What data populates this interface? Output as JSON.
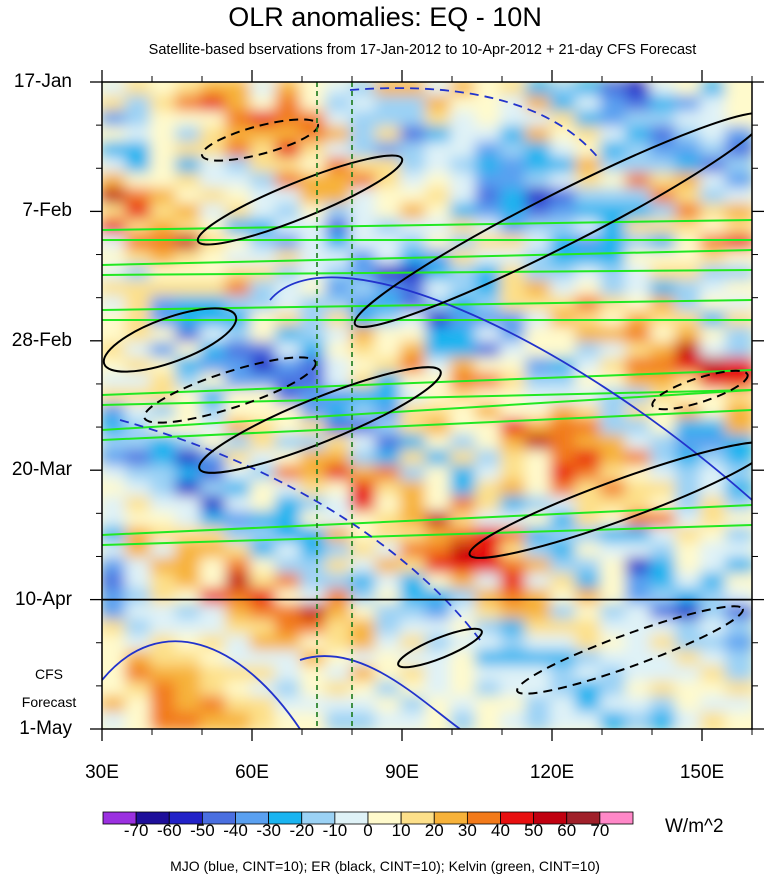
{
  "title": "OLR anomalies: EQ - 10N",
  "subtitle": "Satellite-based bservations from 17-Jan-2012 to 10-Apr-2012 + 21-day CFS Forecast",
  "side_label": {
    "line1": "CFS",
    "line2": "Forecast"
  },
  "footer": "MJO (blue, CINT=10); ER (black, CINT=10); Kelvin (green, CINT=10)",
  "colorbar": {
    "units": "W/m^2",
    "labels": [
      "-70",
      "-60",
      "-50",
      "-40",
      "-30",
      "-20",
      "-10",
      "0",
      "10",
      "20",
      "30",
      "40",
      "50",
      "60",
      "70"
    ],
    "colors": [
      "#9b30e0",
      "#1e0f9a",
      "#2222c8",
      "#4a6fe0",
      "#5aa0f0",
      "#1ab4f0",
      "#9bd2f5",
      "#dff2f7",
      "#fffacc",
      "#fde08a",
      "#f7b23a",
      "#f27a1a",
      "#e81010",
      "#c00010",
      "#a0202a",
      "#ff88c8"
    ]
  },
  "chart_data": {
    "type": "heatmap",
    "title": "OLR anomalies: EQ - 10N",
    "x_ticks": [
      "30E",
      "60E",
      "90E",
      "120E",
      "150E"
    ],
    "x_range": [
      30,
      160
    ],
    "y_ticks": [
      "17-Jan",
      "7-Feb",
      "28-Feb",
      "20-Mar",
      "10-Apr",
      "1-May"
    ],
    "y_tick_days": [
      0,
      21,
      42,
      63,
      84,
      105
    ],
    "y_range": [
      0,
      105
    ],
    "forecast_start": "10-Apr",
    "reference_lines_lon": [
      73,
      80
    ],
    "units": "W/m^2",
    "series": [
      {
        "name": "MJO",
        "color": "blue",
        "cint": 10
      },
      {
        "name": "ER",
        "color": "black",
        "cint": 10
      },
      {
        "name": "Kelvin",
        "color": "green",
        "cint": 10
      }
    ]
  }
}
